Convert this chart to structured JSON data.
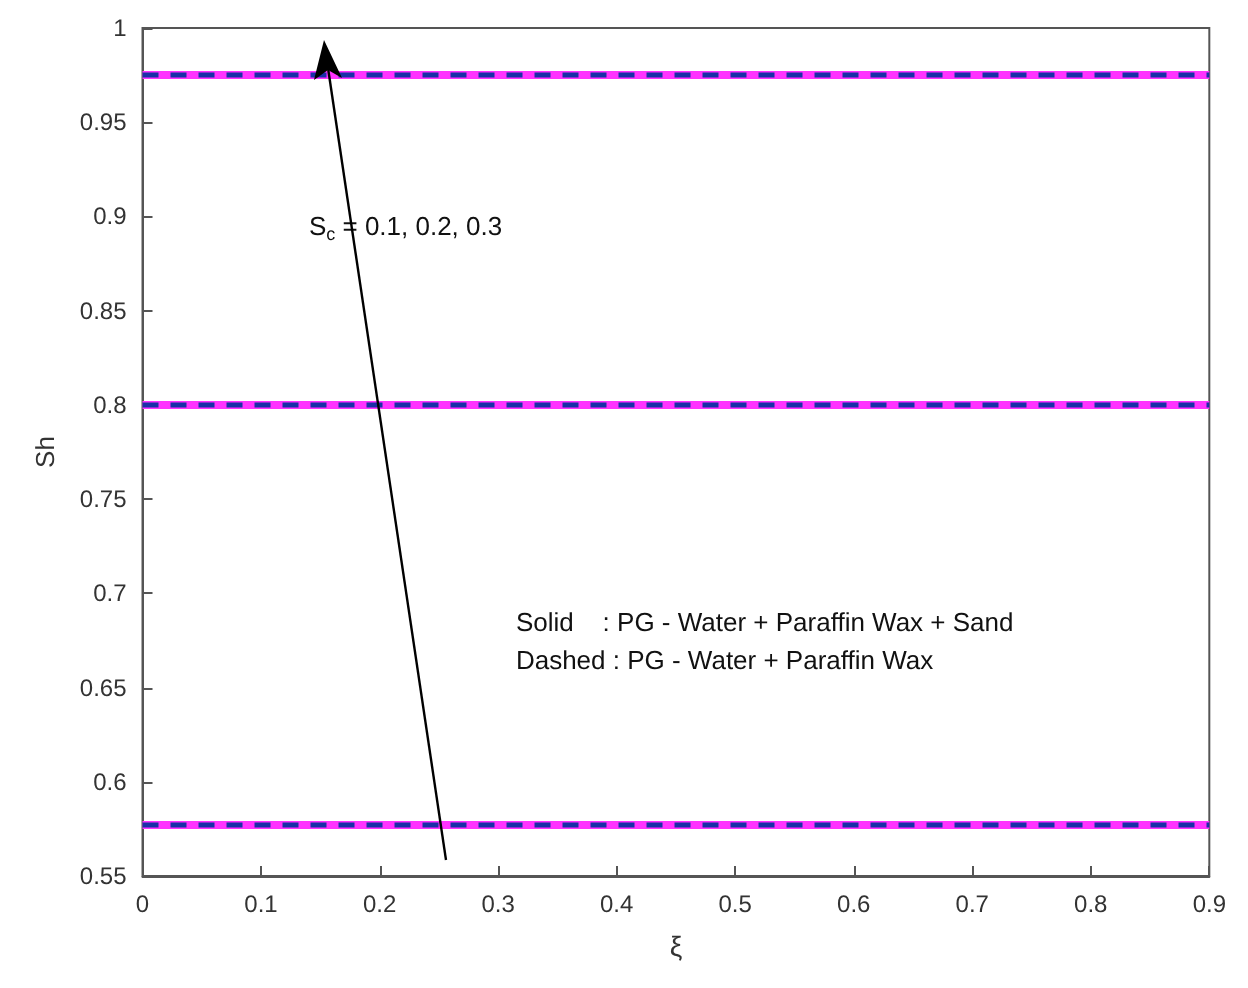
{
  "chart_data": {
    "type": "line",
    "xlabel": "ξ",
    "ylabel": "Sh",
    "x": [
      0,
      0.9
    ],
    "series": [
      {
        "color": "#ff33ff",
        "values": [
          0.975,
          0.975
        ],
        "line_style": "solid"
      },
      {
        "color": "#1a2fa8",
        "values": [
          0.975,
          0.975
        ],
        "line_style": "dashed"
      },
      {
        "color": "#ff33ff",
        "values": [
          0.8,
          0.8
        ],
        "line_style": "solid"
      },
      {
        "color": "#1a2fa8",
        "values": [
          0.8,
          0.8
        ],
        "line_style": "dashed"
      },
      {
        "color": "#ff33ff",
        "values": [
          0.577,
          0.577
        ],
        "line_style": "solid"
      },
      {
        "color": "#1a2fa8",
        "values": [
          0.577,
          0.577
        ],
        "line_style": "dashed"
      }
    ],
    "xlim": [
      0,
      0.9
    ],
    "xticks": [
      0,
      0.1,
      0.2,
      0.3,
      0.4,
      0.5,
      0.6,
      0.7,
      0.8,
      0.9
    ],
    "ylim": [
      0.55,
      1
    ],
    "yticks": [
      0.55,
      0.6,
      0.65,
      0.7,
      0.75,
      0.8,
      0.85,
      0.9,
      0.95,
      1
    ],
    "grid": false,
    "marker": "none",
    "annotations": [
      "S$_{c}$ = 0.1, 0.2, 0.3",
      "Solid    : PG - Water + Paraffin Wax + Sand",
      "Dashed : PG - Water + Paraffin Wax"
    ]
  }
}
